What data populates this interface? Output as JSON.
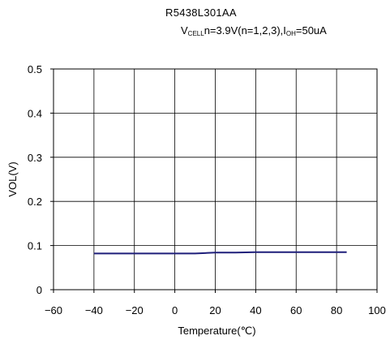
{
  "chart_data": {
    "type": "line",
    "title": "R5438L301AA",
    "subtitle": {
      "v_main": "V",
      "v_sub": "CELL",
      "middle": "n=3.9V(n=1,2,3),I",
      "i_sub": "OH",
      "end": "=50uA"
    },
    "xlabel": "Temperature(℃)",
    "ylabel": "VOL(V)",
    "xlim": [
      -60,
      100
    ],
    "ylim": [
      0,
      0.5
    ],
    "x_ticks": [
      -60,
      -40,
      -20,
      0,
      20,
      40,
      60,
      80,
      100
    ],
    "x_tick_labels": [
      "−60",
      "−40",
      "−20",
      "0",
      "20",
      "40",
      "60",
      "80",
      "100"
    ],
    "y_ticks": [
      0,
      0.1,
      0.2,
      0.3,
      0.4,
      0.5
    ],
    "y_tick_labels": [
      "0",
      "0.1",
      "0.2",
      "0.3",
      "0.4",
      "0.5"
    ],
    "grid": true,
    "series": [
      {
        "color": "#1f1f7a",
        "x": [
          -40,
          -30,
          -20,
          -10,
          0,
          10,
          15,
          20,
          30,
          40,
          50,
          60,
          70,
          80,
          85
        ],
        "y": [
          0.082,
          0.082,
          0.082,
          0.082,
          0.082,
          0.082,
          0.083,
          0.084,
          0.084,
          0.085,
          0.085,
          0.085,
          0.085,
          0.085,
          0.085
        ]
      }
    ]
  }
}
